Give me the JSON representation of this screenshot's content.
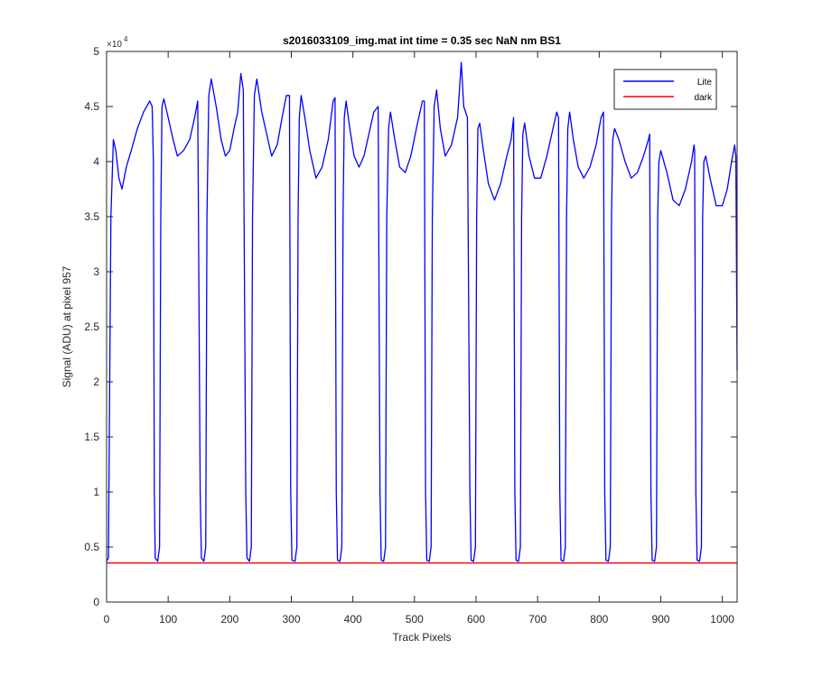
{
  "chart_data": {
    "type": "line",
    "title": "s2016033109_img.mat int time = 0.35 sec  NaN nm BS1",
    "x_label": "Track Pixels",
    "y_label": "Signal (ADU) at pixel 957",
    "y_scale_label": "×10",
    "y_scale_exponent": "4",
    "xlim": [
      0,
      1024
    ],
    "xticks": [
      0,
      100,
      200,
      300,
      400,
      500,
      600,
      700,
      800,
      900,
      1000
    ],
    "ylim": [
      0,
      5
    ],
    "yticks": [
      0,
      0.5,
      1,
      1.5,
      2,
      2.5,
      3,
      3.5,
      4,
      4.5,
      5
    ],
    "grid": false,
    "legend": "upper right",
    "series": [
      {
        "name": "Lite",
        "color": "#0000ff",
        "x": [
          0,
          3,
          7,
          11,
          15,
          20,
          25,
          32,
          40,
          50,
          60,
          70,
          74,
          76,
          77.5,
          79,
          83,
          86,
          88,
          90,
          93,
          100,
          108,
          115,
          125,
          135,
          143,
          148,
          152,
          154,
          158,
          161,
          163,
          166,
          170,
          178,
          186,
          193,
          200,
          207,
          213,
          218,
          222,
          226,
          228,
          232,
          235,
          237,
          240,
          244,
          252,
          260,
          268,
          277,
          285,
          292,
          297,
          299,
          301,
          306,
          309,
          311,
          313,
          316,
          322,
          330,
          340,
          350,
          360,
          368,
          371,
          373,
          375,
          379,
          382,
          384,
          386,
          389,
          395,
          402,
          410,
          418,
          426,
          434,
          441,
          444,
          446,
          450,
          453,
          455,
          458,
          461,
          468,
          476,
          485,
          494,
          505,
          513,
          516,
          518,
          520,
          524,
          527,
          529,
          532,
          536,
          542,
          550,
          560,
          570,
          576,
          580,
          586,
          590,
          592,
          596,
          599,
          601,
          603,
          606,
          612,
          620,
          630,
          640,
          650,
          657,
          661,
          663,
          665,
          669,
          672,
          674,
          676,
          679,
          686,
          695,
          705,
          715,
          725,
          731,
          734,
          736,
          738,
          742,
          745,
          747,
          749,
          752,
          758,
          766,
          775,
          785,
          795,
          803,
          807,
          809,
          811,
          815,
          818,
          820,
          822,
          825,
          832,
          842,
          852,
          862,
          872,
          880,
          882,
          884,
          886,
          890,
          893,
          895,
          897,
          900,
          910,
          920,
          930,
          940,
          950,
          954,
          955,
          957,
          959,
          963,
          966,
          968,
          970,
          973,
          980,
          990,
          1000,
          1008,
          1015,
          1020,
          1022,
          1024
        ],
        "values": [
          0.37,
          0.4,
          3.5,
          4.2,
          4.1,
          3.85,
          3.75,
          3.95,
          4.1,
          4.3,
          4.45,
          4.55,
          4.5,
          4.0,
          1,
          0.4,
          0.37,
          0.5,
          3.5,
          4.5,
          4.57,
          4.4,
          4.2,
          4.05,
          4.1,
          4.2,
          4.4,
          4.55,
          1,
          0.4,
          0.37,
          0.5,
          3.5,
          4.6,
          4.75,
          4.5,
          4.2,
          4.05,
          4.1,
          4.3,
          4.45,
          4.8,
          4.65,
          1,
          0.4,
          0.37,
          0.5,
          3.5,
          4.6,
          4.75,
          4.45,
          4.25,
          4.05,
          4.15,
          4.4,
          4.6,
          4.6,
          1,
          0.38,
          0.37,
          0.5,
          3.5,
          4.4,
          4.6,
          4.4,
          4.1,
          3.85,
          3.95,
          4.2,
          4.55,
          4.58,
          1,
          0.38,
          0.37,
          0.5,
          3.5,
          4.4,
          4.55,
          4.3,
          4.05,
          3.95,
          4.05,
          4.25,
          4.45,
          4.5,
          1,
          0.38,
          0.37,
          0.5,
          3.5,
          4.3,
          4.45,
          4.2,
          3.95,
          3.9,
          4.05,
          4.35,
          4.55,
          4.55,
          1,
          0.38,
          0.37,
          0.5,
          3.5,
          4.5,
          4.65,
          4.3,
          4.05,
          4.15,
          4.4,
          4.9,
          4.5,
          4.4,
          1,
          0.38,
          0.37,
          0.5,
          3.5,
          4.3,
          4.35,
          4.1,
          3.8,
          3.65,
          3.8,
          4.05,
          4.2,
          4.4,
          1,
          0.38,
          0.37,
          0.5,
          3.5,
          4.25,
          4.35,
          4.05,
          3.85,
          3.85,
          4.05,
          4.3,
          4.45,
          4.4,
          1,
          0.38,
          0.37,
          0.5,
          3.5,
          4.3,
          4.45,
          4.2,
          3.95,
          3.85,
          3.95,
          4.15,
          4.4,
          4.45,
          1,
          0.38,
          0.37,
          0.5,
          3.5,
          4.2,
          4.3,
          4.2,
          4.0,
          3.85,
          3.9,
          4.05,
          4.2,
          4.25,
          1,
          0.38,
          0.37,
          0.5,
          3.5,
          4.0,
          4.1,
          3.9,
          3.65,
          3.6,
          3.75,
          4.0,
          4.15,
          4.1,
          1,
          0.38,
          0.37,
          0.5,
          3.5,
          4.0,
          4.05,
          3.85,
          3.6,
          3.6,
          3.75,
          4.0,
          4.15,
          4.05,
          2.1
        ]
      },
      {
        "name": "dark",
        "color": "#ff0000",
        "x": [
          0,
          1024
        ],
        "values": [
          0.355,
          0.355
        ]
      }
    ]
  }
}
